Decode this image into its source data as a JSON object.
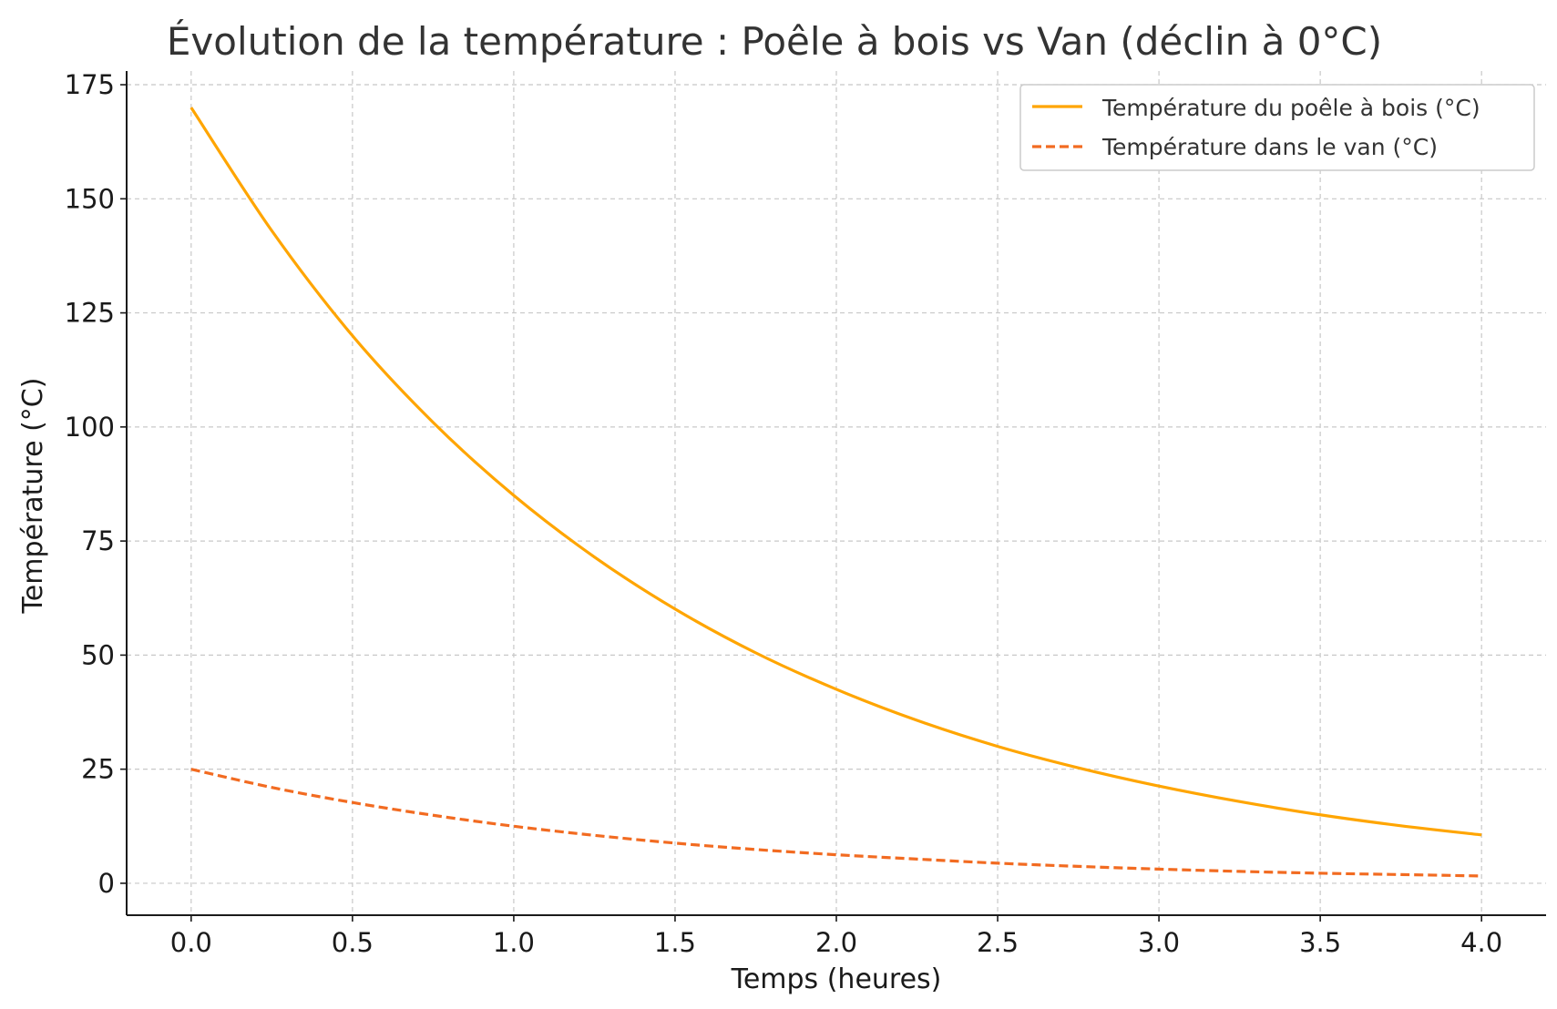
{
  "chart_data": {
    "type": "line",
    "title": "Évolution de la température : Poêle à bois vs Van (déclin à 0°C)",
    "xlabel": "Temps (heures)",
    "ylabel": "Température (°C)",
    "xlim": [
      -0.2,
      4.2
    ],
    "ylim": [
      -7,
      178
    ],
    "xticks": [
      0.0,
      0.5,
      1.0,
      1.5,
      2.0,
      2.5,
      3.0,
      3.5,
      4.0
    ],
    "xtick_labels": [
      "0.0",
      "0.5",
      "1.0",
      "1.5",
      "2.0",
      "2.5",
      "3.0",
      "3.5",
      "4.0"
    ],
    "yticks": [
      0,
      25,
      50,
      75,
      100,
      125,
      150,
      175
    ],
    "ytick_labels": [
      "0",
      "25",
      "50",
      "75",
      "100",
      "125",
      "150",
      "175"
    ],
    "grid": true,
    "legend_position": "top-right",
    "series": [
      {
        "name": "Température du poêle à bois (°C)",
        "color": "#FFA500",
        "style": "solid",
        "x": [
          0,
          0.25,
          0.5,
          0.75,
          1.0,
          1.25,
          1.5,
          1.75,
          2.0,
          2.25,
          2.5,
          2.75,
          3.0,
          3.25,
          3.5,
          3.75,
          4.0
        ],
        "y": [
          170,
          143,
          120,
          101,
          85,
          71.5,
          60.1,
          50.5,
          42.5,
          35.7,
          30.0,
          25.3,
          21.3,
          17.9,
          15.0,
          12.6,
          10.6
        ]
      },
      {
        "name": "Température dans le van (°C)",
        "color": "#F26B21",
        "style": "dashed",
        "x": [
          0,
          0.25,
          0.5,
          0.75,
          1.0,
          1.25,
          1.5,
          1.75,
          2.0,
          2.25,
          2.5,
          2.75,
          3.0,
          3.25,
          3.5,
          3.75,
          4.0
        ],
        "y": [
          25,
          21.0,
          17.7,
          14.9,
          12.5,
          10.5,
          8.8,
          7.4,
          6.25,
          5.3,
          4.4,
          3.7,
          3.1,
          2.6,
          2.2,
          1.9,
          1.6
        ]
      }
    ]
  }
}
